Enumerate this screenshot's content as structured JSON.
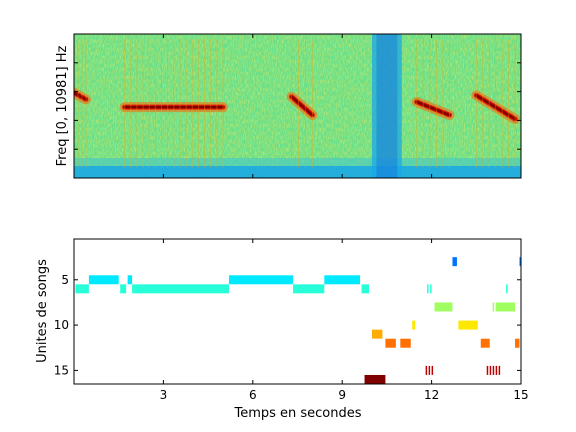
{
  "chart_data": [
    {
      "type": "heatmap",
      "ylabel": "Freq [0, 10981] Hz",
      "xlim": [
        0,
        15
      ],
      "ylim": [
        0,
        10981
      ],
      "colormap": "jet",
      "grid": false,
      "ridges": [
        {
          "t": [
            0.0,
            0.4
          ],
          "f": [
            6500,
            6000
          ]
        },
        {
          "t": [
            1.7,
            5.0
          ],
          "f": [
            5400,
            5400
          ]
        },
        {
          "t": [
            7.3,
            8.0
          ],
          "f": [
            6200,
            4800
          ]
        },
        {
          "t": [
            11.5,
            12.6
          ],
          "f": [
            5800,
            4800
          ]
        },
        {
          "t": [
            13.5,
            14.8
          ],
          "f": [
            6300,
            4500
          ]
        }
      ],
      "noise_band": {
        "t": [
          10.0,
          11.0
        ]
      }
    },
    {
      "type": "scatter",
      "xlabel": "Temps en secondes",
      "ylabel": "Unites de songs",
      "xlim": [
        0,
        15
      ],
      "ylim": [
        16.5,
        0.5
      ],
      "y_reversed": true,
      "xticks": [
        "3",
        "6",
        "9",
        "12",
        "15"
      ],
      "yticks": [
        "5",
        "10",
        "15"
      ],
      "grid": false,
      "colormap": "jet",
      "segments": [
        {
          "t0": 12.7,
          "t1": 12.85,
          "unit": 3
        },
        {
          "t0": 14.95,
          "t1": 15.0,
          "unit": 3
        },
        {
          "t0": 0.5,
          "t1": 1.5,
          "unit": 5
        },
        {
          "t0": 1.8,
          "t1": 1.95,
          "unit": 5
        },
        {
          "t0": 5.2,
          "t1": 7.35,
          "unit": 5
        },
        {
          "t0": 8.4,
          "t1": 9.6,
          "unit": 5
        },
        {
          "t0": 0.05,
          "t1": 0.5,
          "unit": 6
        },
        {
          "t0": 1.55,
          "t1": 1.75,
          "unit": 6
        },
        {
          "t0": 1.95,
          "t1": 5.2,
          "unit": 6
        },
        {
          "t0": 7.35,
          "t1": 8.4,
          "unit": 6
        },
        {
          "t0": 9.65,
          "t1": 9.9,
          "unit": 6
        },
        {
          "t0": 11.85,
          "t1": 11.9,
          "unit": 6
        },
        {
          "t0": 11.95,
          "t1": 12.0,
          "unit": 6
        },
        {
          "t0": 14.5,
          "t1": 14.55,
          "unit": 6
        },
        {
          "t0": 12.1,
          "t1": 12.7,
          "unit": 8
        },
        {
          "t0": 14.05,
          "t1": 14.1,
          "unit": 8
        },
        {
          "t0": 14.15,
          "t1": 14.8,
          "unit": 8
        },
        {
          "t0": 11.35,
          "t1": 11.45,
          "unit": 10
        },
        {
          "t0": 12.9,
          "t1": 13.55,
          "unit": 10
        },
        {
          "t0": 10.0,
          "t1": 10.35,
          "unit": 11
        },
        {
          "t0": 10.45,
          "t1": 10.8,
          "unit": 12
        },
        {
          "t0": 10.95,
          "t1": 11.3,
          "unit": 12
        },
        {
          "t0": 13.65,
          "t1": 13.95,
          "unit": 12
        },
        {
          "t0": 14.8,
          "t1": 14.95,
          "unit": 12
        },
        {
          "t0": 11.8,
          "t1": 11.85,
          "unit": 15
        },
        {
          "t0": 11.9,
          "t1": 11.95,
          "unit": 15
        },
        {
          "t0": 12.0,
          "t1": 12.05,
          "unit": 15
        },
        {
          "t0": 13.85,
          "t1": 13.9,
          "unit": 15
        },
        {
          "t0": 13.95,
          "t1": 14.0,
          "unit": 15
        },
        {
          "t0": 14.05,
          "t1": 14.1,
          "unit": 15
        },
        {
          "t0": 14.15,
          "t1": 14.2,
          "unit": 15
        },
        {
          "t0": 14.25,
          "t1": 14.3,
          "unit": 15
        },
        {
          "t0": 9.75,
          "t1": 10.45,
          "unit": 16
        }
      ]
    }
  ]
}
